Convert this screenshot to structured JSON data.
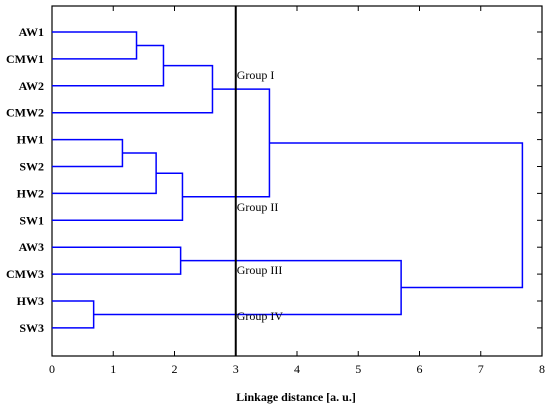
{
  "chart_data": {
    "type": "dendrogram",
    "xlabel": "Linkage distance [a. u.]",
    "xlim": [
      0,
      8
    ],
    "xticks": [
      0,
      1,
      2,
      3,
      4,
      5,
      6,
      7,
      8
    ],
    "leaves": [
      "AW1",
      "CMW1",
      "AW2",
      "CMW2",
      "HW1",
      "SW2",
      "HW2",
      "SW1",
      "AW3",
      "CMW3",
      "HW3",
      "SW3"
    ],
    "merges": [
      {
        "left": "AW1",
        "right": "CMW1",
        "height": 1.38
      },
      {
        "left": "HW1",
        "right": "SW2",
        "height": 1.15
      },
      {
        "left": "HW3",
        "right": "SW3",
        "height": 0.68
      },
      {
        "left": "m0",
        "right": "AW2",
        "height": 1.82
      },
      {
        "left": "m1",
        "right": "HW2",
        "height": 1.7
      },
      {
        "left": "m3",
        "right": "CMW2",
        "height": 2.62
      },
      {
        "left": "m4",
        "right": "SW1",
        "height": 2.13
      },
      {
        "left": "AW3",
        "right": "CMW3",
        "height": 2.1
      },
      {
        "left": "m5",
        "right": "m6",
        "height": 3.55
      },
      {
        "left": "m7",
        "right": "m2",
        "height": 5.7
      },
      {
        "left": "m8",
        "right": "m9",
        "height": 7.68
      }
    ],
    "cut_line": 3,
    "groups": [
      {
        "label": "Group I",
        "y_leaf": 1.6
      },
      {
        "label": "Group II",
        "y_leaf": 6.5
      },
      {
        "label": "Group III",
        "y_leaf": 8.85
      },
      {
        "label": "Group IV",
        "y_leaf": 10.55
      }
    ]
  }
}
